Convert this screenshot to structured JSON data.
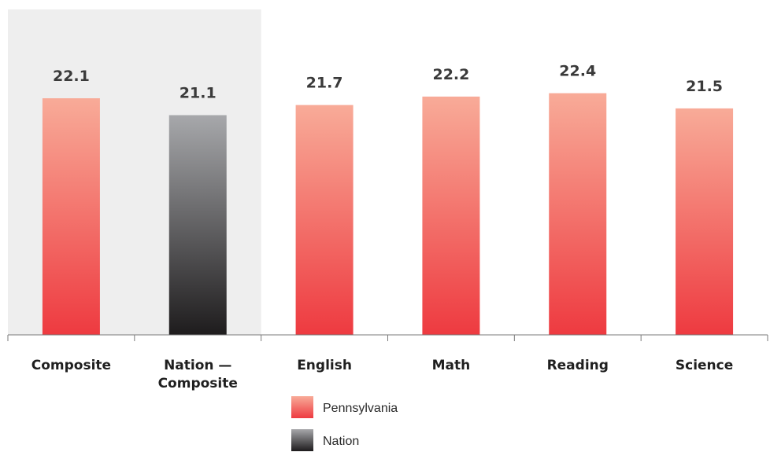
{
  "chart_data": {
    "type": "bar",
    "categories": [
      "Composite",
      "Nation —\nComposite",
      "English",
      "Math",
      "Reading",
      "Science"
    ],
    "values": [
      22.1,
      21.1,
      21.7,
      22.2,
      22.4,
      21.5
    ],
    "value_labels": [
      "22.1",
      "21.1",
      "21.7",
      "22.2",
      "22.4",
      "21.5"
    ],
    "bar_series": [
      "Pennsylvania",
      "Nation",
      "Pennsylvania",
      "Pennsylvania",
      "Pennsylvania",
      "Pennsylvania"
    ],
    "highlighted_categories": [
      "Composite",
      "Nation —\nComposite"
    ],
    "legend": [
      {
        "name": "Pennsylvania",
        "color_top": "#f8ab98",
        "color_bottom": "#ee3a40"
      },
      {
        "name": "Nation",
        "color_top": "#a7a8ab",
        "color_bottom": "#1e1c1d"
      }
    ],
    "legend_position": "bottom-center",
    "title": "",
    "xlabel": "",
    "ylabel": "",
    "highlight_color": "#eeeeee",
    "grid": false
  }
}
